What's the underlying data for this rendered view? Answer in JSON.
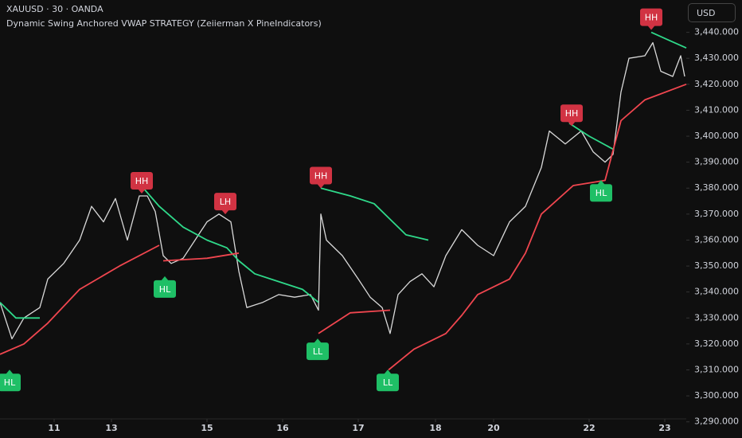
{
  "toolbar": {
    "currency": "USD"
  },
  "chart_data": {
    "type": "line",
    "title": "XAUUSD · 30 · OANDA",
    "subtitle": "Dynamic Swing Anchored VWAP STRATEGY (Zeiierman X PineIndicators)",
    "xlim": [
      0,
      860
    ],
    "ylim": [
      3285,
      3450
    ],
    "xticks": [
      {
        "value": 68,
        "label": "11"
      },
      {
        "value": 140,
        "label": "13"
      },
      {
        "value": 260,
        "label": "15"
      },
      {
        "value": 355,
        "label": "16"
      },
      {
        "value": 450,
        "label": "17"
      },
      {
        "value": 547,
        "label": "18"
      },
      {
        "value": 620,
        "label": "20"
      },
      {
        "value": 740,
        "label": "22"
      },
      {
        "value": 835,
        "label": "23"
      }
    ],
    "yticks": [
      {
        "value": 3290,
        "label": "3,290.000"
      },
      {
        "value": 3300,
        "label": "3,300.000"
      },
      {
        "value": 3310,
        "label": "3,310.000"
      },
      {
        "value": 3320,
        "label": "3,320.000"
      },
      {
        "value": 3330,
        "label": "3,330.000"
      },
      {
        "value": 3340,
        "label": "3,340.000"
      },
      {
        "value": 3350,
        "label": "3,350.000"
      },
      {
        "value": 3360,
        "label": "3,360.000"
      },
      {
        "value": 3370,
        "label": "3,370.000"
      },
      {
        "value": 3380,
        "label": "3,380.000"
      },
      {
        "value": 3390,
        "label": "3,390.000"
      },
      {
        "value": 3400,
        "label": "3,400.000"
      },
      {
        "value": 3410,
        "label": "3,410.000"
      },
      {
        "value": 3420,
        "label": "3,420.000"
      },
      {
        "value": 3430,
        "label": "3,430.000"
      },
      {
        "value": 3440,
        "label": "3,440.000"
      }
    ],
    "grid": false,
    "series": [
      {
        "color": "#d9d9d9",
        "width": 1.3,
        "x": [
          0,
          15,
          30,
          50,
          60,
          80,
          100,
          115,
          130,
          145,
          160,
          175,
          185,
          195,
          205,
          215,
          230,
          245,
          260,
          275,
          290,
          300,
          310,
          330,
          350,
          370,
          390,
          400,
          403,
          410,
          430,
          450,
          465,
          480,
          490,
          500,
          515,
          530,
          545,
          560,
          580,
          600,
          620,
          640,
          660,
          680,
          690,
          710,
          730,
          745,
          760,
          770,
          780,
          790,
          810,
          820,
          830,
          845,
          855,
          860
        ],
        "values": [
          3336,
          3322,
          3330,
          3334,
          3345,
          3351,
          3360,
          3373,
          3367,
          3376,
          3360,
          3377,
          3377,
          3371,
          3354,
          3351,
          3353,
          3360,
          3367,
          3370,
          3367,
          3348,
          3334,
          3336,
          3339,
          3338,
          3339,
          3333,
          3370,
          3360,
          3354,
          3345,
          3338,
          3334,
          3324,
          3339,
          3344,
          3347,
          3342,
          3354,
          3364,
          3358,
          3354,
          3367,
          3373,
          3388,
          3402,
          3397,
          3402,
          3394,
          3390,
          3393,
          3417,
          3430,
          3431,
          3436,
          3425,
          3423,
          3431,
          3423
        ]
      },
      {
        "color": "#2fd98a",
        "width": 1.8,
        "x": [
          0,
          20,
          50,
          null,
          180,
          200,
          230,
          260,
          285,
          300,
          320,
          350,
          380,
          400,
          null,
          403,
          440,
          470,
          490,
          510,
          538,
          null,
          715,
          740,
          770,
          null,
          818,
          840,
          862
        ],
        "values": [
          3336,
          3330,
          3330,
          null,
          3380,
          3373,
          3365,
          3360,
          3357,
          3352,
          3347,
          3344,
          3341,
          3336,
          null,
          3380,
          3377,
          3374,
          3368,
          3362,
          3360,
          null,
          3405,
          3400,
          3395,
          null,
          3440,
          3437,
          3434
        ]
      },
      {
        "color": "#f0464f",
        "width": 1.8,
        "x": [
          0,
          30,
          60,
          100,
          150,
          200,
          null,
          205,
          260,
          300,
          null,
          400,
          440,
          490,
          null,
          488,
          520,
          560,
          580,
          600,
          640,
          660,
          680,
          720,
          760,
          780,
          810,
          862
        ],
        "values": [
          3316,
          3320,
          3328,
          3341,
          3350,
          3358,
          null,
          3352,
          3353,
          3355,
          null,
          3324,
          3332,
          3333,
          null,
          3310,
          3318,
          3324,
          3331,
          3339,
          3345,
          3355,
          3370,
          3381,
          3383,
          3406,
          3414,
          3420
        ]
      }
    ],
    "annotations": [
      {
        "text": "HL",
        "x": 12,
        "y": 3311,
        "color": "#1fbf66",
        "placement": "below"
      },
      {
        "text": "HH",
        "x": 178,
        "y": 3377,
        "color": "#d13343",
        "placement": "above"
      },
      {
        "text": "HL",
        "x": 207,
        "y": 3347,
        "color": "#1fbf66",
        "placement": "below"
      },
      {
        "text": "LH",
        "x": 283,
        "y": 3369,
        "color": "#d13343",
        "placement": "above"
      },
      {
        "text": "HH",
        "x": 403,
        "y": 3379,
        "color": "#d13343",
        "placement": "above"
      },
      {
        "text": "LL",
        "x": 399,
        "y": 3323,
        "color": "#1fbf66",
        "placement": "below"
      },
      {
        "text": "LL",
        "x": 487,
        "y": 3311,
        "color": "#1fbf66",
        "placement": "below"
      },
      {
        "text": "HH",
        "x": 718,
        "y": 3403,
        "color": "#d13343",
        "placement": "above"
      },
      {
        "text": "HL",
        "x": 755,
        "y": 3384,
        "color": "#1fbf66",
        "placement": "below"
      },
      {
        "text": "HH",
        "x": 818,
        "y": 3440,
        "color": "#d13343",
        "placement": "above"
      }
    ]
  }
}
